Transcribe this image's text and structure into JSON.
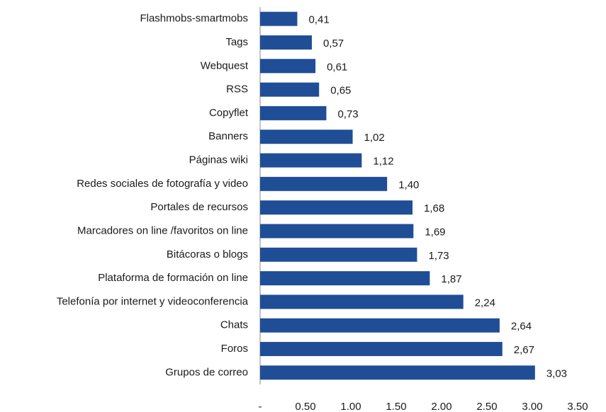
{
  "chart_data": {
    "type": "barh",
    "categories": [
      "Flashmobs-smartmobs",
      "Tags",
      "Webquest",
      "RSS",
      "Copyflet",
      "Banners",
      "Páginas wiki",
      "Redes sociales de fotografía y video",
      "Portales de recursos",
      "Marcadores on line /favoritos on line",
      "Bitácoras o blogs",
      "Plataforma de formación on line",
      "Telefonía por internet y videoconferencia",
      "Chats",
      "Foros",
      "Grupos de correo"
    ],
    "values": [
      0.41,
      0.57,
      0.61,
      0.65,
      0.73,
      1.02,
      1.12,
      1.4,
      1.68,
      1.69,
      1.73,
      1.87,
      2.24,
      2.64,
      2.67,
      3.03
    ],
    "value_labels": [
      "0,41",
      "0,57",
      "0,61",
      "0,65",
      "0,73",
      "1,02",
      "1,12",
      "1,40",
      "1,68",
      "1,69",
      "1,73",
      "1,87",
      "2,24",
      "2,64",
      "2,67",
      "3,03"
    ],
    "color": "#1f4e96",
    "xlim": [
      0,
      3.5
    ],
    "xticks": [
      {
        "value": 0,
        "label": "-"
      },
      {
        "value": 0.5,
        "label": "0.50"
      },
      {
        "value": 1,
        "label": "1.00"
      },
      {
        "value": 1.5,
        "label": "1.50"
      },
      {
        "value": 2,
        "label": "2.00"
      },
      {
        "value": 2.5,
        "label": "2.50"
      },
      {
        "value": 3,
        "label": "3.00"
      },
      {
        "value": 3.5,
        "label": "3.50"
      }
    ],
    "grid": false
  }
}
